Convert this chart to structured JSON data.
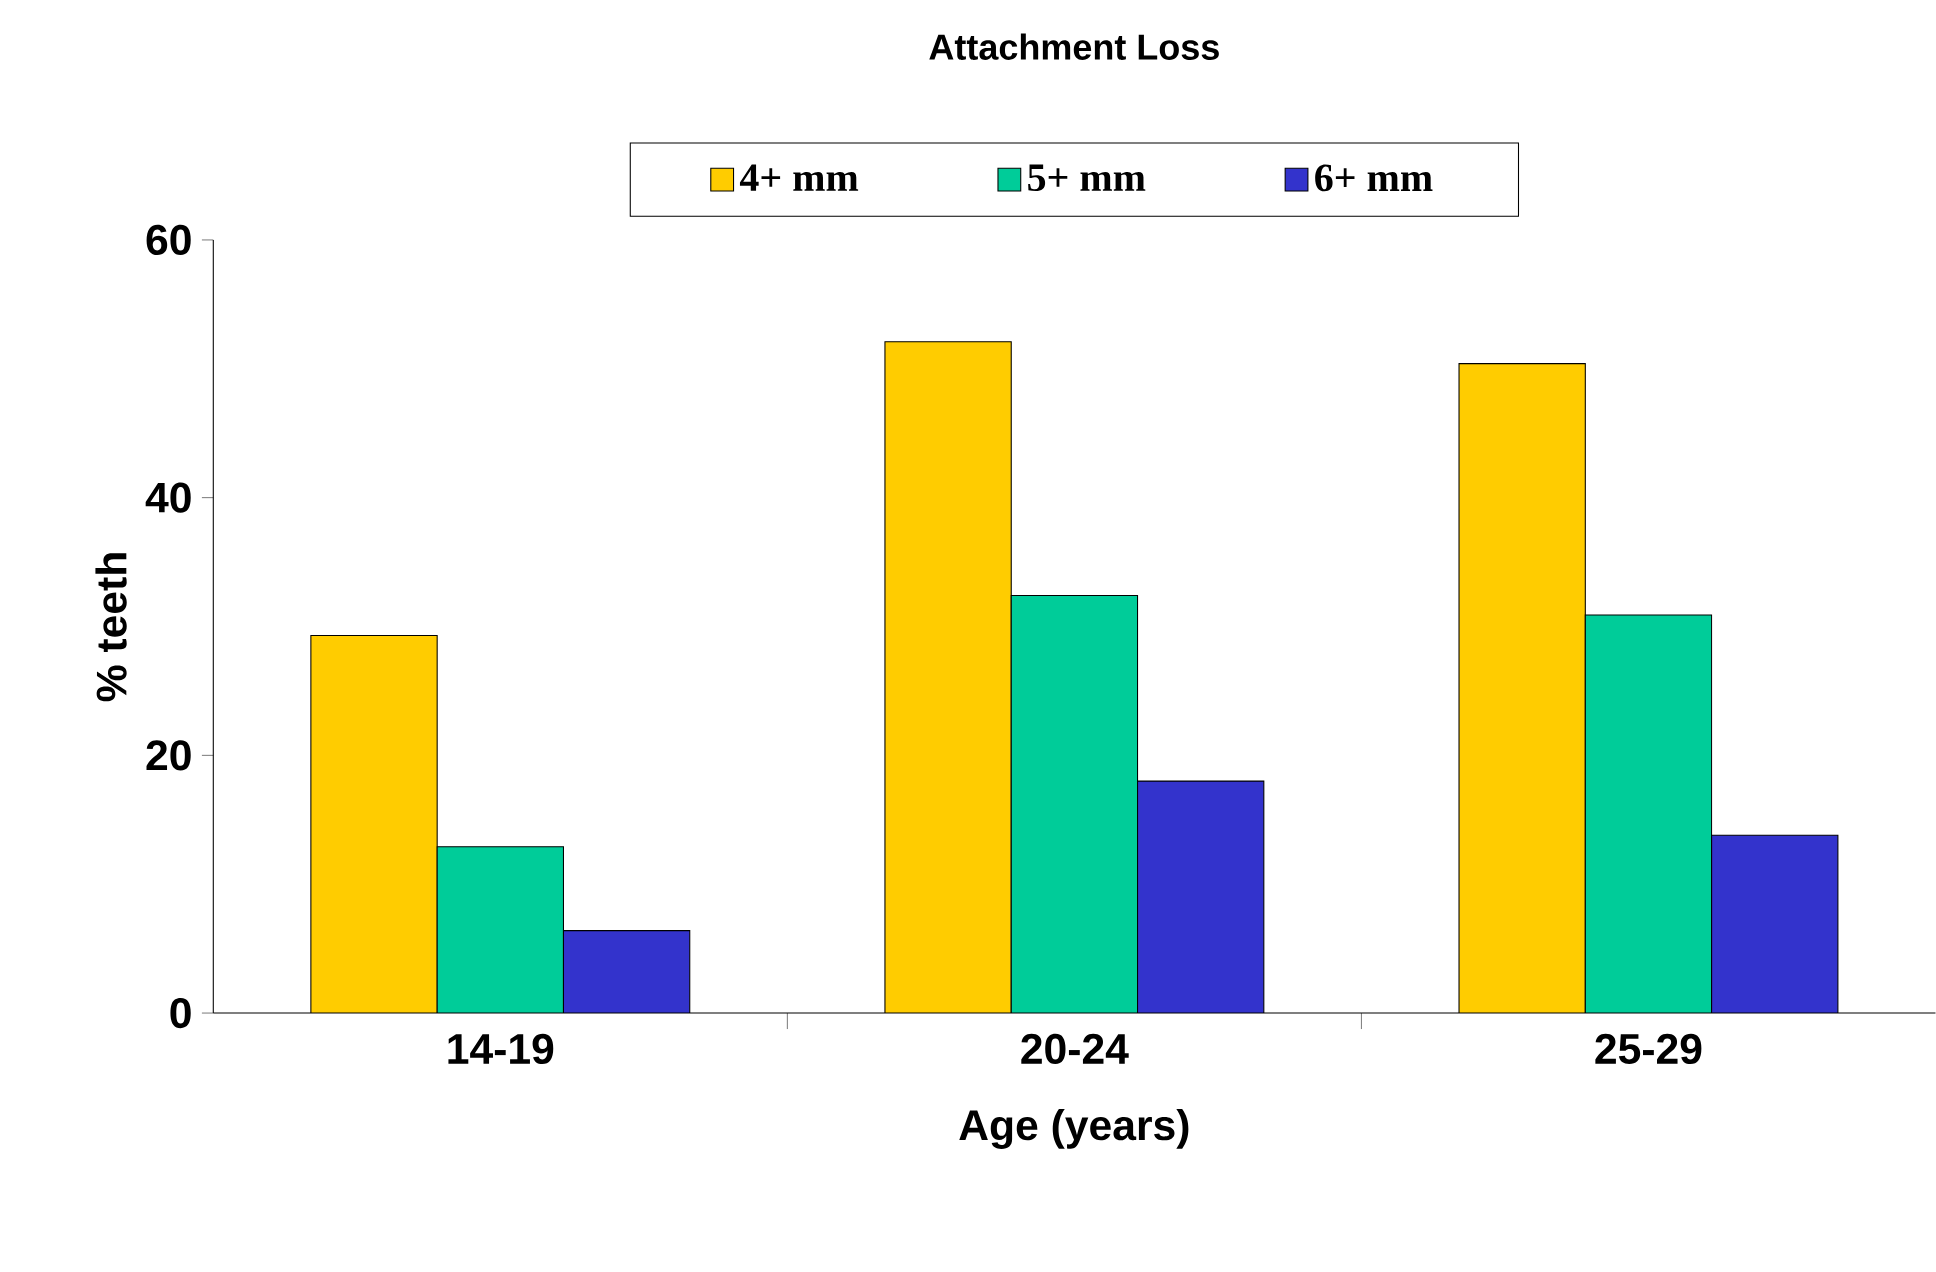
{
  "chart_data": {
    "type": "bar",
    "title": "Attachment Loss",
    "xlabel": "Age (years)",
    "ylabel": "% teeth",
    "categories": [
      "14-19",
      "20-24",
      "25-29"
    ],
    "series": [
      {
        "name": "4+ mm",
        "color": "#ffcc00",
        "values": [
          29.3,
          52.1,
          50.4
        ]
      },
      {
        "name": "5+ mm",
        "color": "#00cc99",
        "values": [
          12.9,
          32.4,
          30.9
        ]
      },
      {
        "name": "6+ mm",
        "color": "#3333cc",
        "values": [
          6.4,
          18.0,
          13.8
        ]
      }
    ],
    "ylim": [
      0,
      60
    ],
    "yticks": [
      0,
      20,
      40,
      60
    ],
    "legend": "top"
  }
}
